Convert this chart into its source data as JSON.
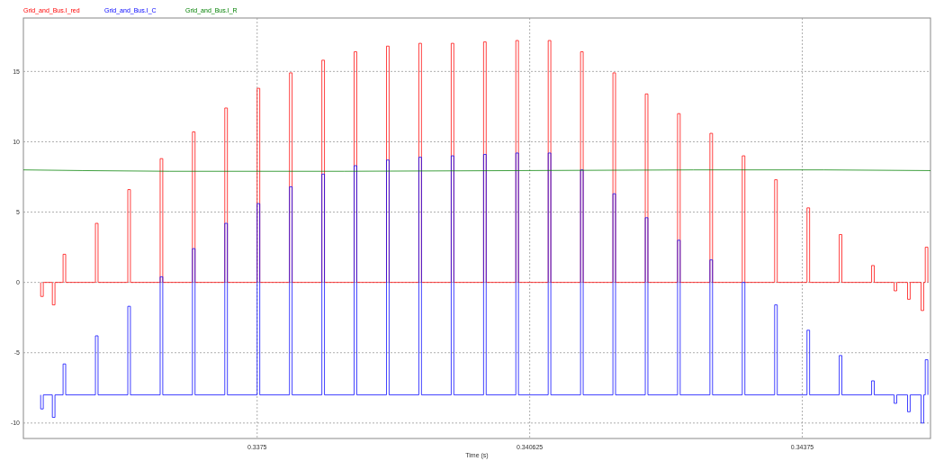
{
  "chart_data": {
    "type": "line",
    "xlabel": "Time (s)",
    "legend": "top left",
    "grid": true,
    "marker": "none",
    "line_style": "solid",
    "xlim": [
      0.33482,
      0.34522
    ],
    "xticks": [
      0.3375,
      0.340625,
      0.34375
    ],
    "ylim": [
      -11.1,
      18.8
    ],
    "yticks": [
      -10,
      -5,
      0,
      5,
      10,
      15
    ],
    "x": [
      0.335018,
      0.335018,
      0.335048,
      0.335048,
      0.335152,
      0.335152,
      0.335182,
      0.335182,
      0.335275,
      0.335275,
      0.335305,
      0.335305,
      0.335646,
      0.335646,
      0.335676,
      0.335676,
      0.336017,
      0.336017,
      0.336047,
      0.336047,
      0.336388,
      0.336388,
      0.336418,
      0.336418,
      0.336758,
      0.336758,
      0.336788,
      0.336788,
      0.337129,
      0.337129,
      0.337159,
      0.337159,
      0.3375,
      0.3375,
      0.33753,
      0.33753,
      0.337871,
      0.337871,
      0.337901,
      0.337901,
      0.338242,
      0.338242,
      0.338272,
      0.338272,
      0.338612,
      0.338612,
      0.338642,
      0.338642,
      0.338983,
      0.338983,
      0.339013,
      0.339013,
      0.339354,
      0.339354,
      0.339384,
      0.339384,
      0.339725,
      0.339725,
      0.339755,
      0.339755,
      0.340096,
      0.340096,
      0.340126,
      0.340126,
      0.340466,
      0.340466,
      0.340496,
      0.340496,
      0.340837,
      0.340837,
      0.340867,
      0.340867,
      0.341208,
      0.341208,
      0.341238,
      0.341238,
      0.341579,
      0.341579,
      0.341609,
      0.341609,
      0.34195,
      0.34195,
      0.34198,
      0.34198,
      0.34232,
      0.34232,
      0.34235,
      0.34235,
      0.342691,
      0.342691,
      0.342721,
      0.342721,
      0.343062,
      0.343062,
      0.343092,
      0.343092,
      0.343433,
      0.343433,
      0.343463,
      0.343463,
      0.343804,
      0.343804,
      0.343834,
      0.343834,
      0.344174,
      0.344174,
      0.344204,
      0.344204,
      0.344545,
      0.344545,
      0.344575,
      0.344575,
      0.344803,
      0.344803,
      0.344833,
      0.344833,
      0.344957,
      0.344957,
      0.344987,
      0.344987,
      0.345112,
      0.345112,
      0.345142,
      0.345142,
      0.34516,
      0.34516,
      0.34519,
      0.34519
    ],
    "series": [
      {
        "name": "Grid_and_Bus.I_red",
        "color": "#ff0000",
        "values": [
          0,
          -1.0,
          -1.0,
          0,
          0,
          -1.6,
          -1.6,
          0,
          0,
          2.0,
          2.0,
          0,
          0,
          4.2,
          4.2,
          0,
          0,
          6.6,
          6.6,
          0,
          0,
          8.8,
          8.8,
          0,
          0,
          10.7,
          10.7,
          0,
          0,
          12.4,
          12.4,
          0,
          0,
          13.8,
          13.8,
          0,
          0,
          14.9,
          14.9,
          0,
          0,
          15.8,
          15.8,
          0,
          0,
          16.4,
          16.4,
          0,
          0,
          16.8,
          16.8,
          0,
          0,
          17.0,
          17.0,
          0,
          0,
          17.0,
          17.0,
          0,
          0,
          17.1,
          17.1,
          0,
          0,
          17.2,
          17.2,
          0,
          0,
          17.2,
          17.2,
          0,
          0,
          16.4,
          16.4,
          0,
          0,
          14.9,
          14.9,
          0,
          0,
          13.4,
          13.4,
          0,
          0,
          12.0,
          12.0,
          0,
          0,
          10.6,
          10.6,
          0,
          0,
          9.0,
          9.0,
          0,
          0,
          7.3,
          7.3,
          0,
          0,
          5.3,
          5.3,
          0,
          0,
          3.4,
          3.4,
          0,
          0,
          1.2,
          1.2,
          0,
          0,
          -0.6,
          -0.6,
          0,
          0,
          -1.2,
          -1.2,
          0,
          0,
          -2.0,
          -2.0,
          0,
          0,
          2.5,
          2.5,
          0
        ]
      },
      {
        "name": "Grid_and_Bus.I_C",
        "color": "#0000ff",
        "values": [
          -8,
          -9.0,
          -9.0,
          -8,
          -8,
          -9.6,
          -9.6,
          -8,
          -8,
          -5.8,
          -5.8,
          -8,
          -8,
          -3.8,
          -3.8,
          -8,
          -8,
          -1.7,
          -1.7,
          -8,
          -8,
          0.4,
          0.4,
          -8,
          -8,
          2.4,
          2.4,
          -8,
          -8,
          4.2,
          4.2,
          -8,
          -8,
          5.6,
          5.6,
          -8,
          -8,
          6.8,
          6.8,
          -8,
          -8,
          7.7,
          7.7,
          -8,
          -8,
          8.3,
          8.3,
          -8,
          -8,
          8.7,
          8.7,
          -8,
          -8,
          8.9,
          8.9,
          -8,
          -8,
          9.0,
          9.0,
          -8,
          -8,
          9.1,
          9.1,
          -8,
          -8,
          9.2,
          9.2,
          -8,
          -8,
          9.2,
          9.2,
          -8,
          -8,
          8.0,
          8.0,
          -8,
          -8,
          6.3,
          6.3,
          -8,
          -8,
          4.6,
          4.6,
          -8,
          -8,
          3.0,
          3.0,
          -8,
          -8,
          1.6,
          1.6,
          -8,
          -8,
          0.0,
          0.0,
          -8,
          -8,
          -1.6,
          -1.6,
          -8,
          -8,
          -3.4,
          -3.4,
          -8,
          -8,
          -5.2,
          -5.2,
          -8,
          -8,
          -7.0,
          -7.0,
          -8,
          -8,
          -8.6,
          -8.6,
          -8,
          -8,
          -9.2,
          -9.2,
          -8,
          -8,
          -10.0,
          -10.0,
          -8,
          -8,
          -5.5,
          -5.5,
          -8
        ]
      },
      {
        "name": "Grid_and_Bus.I_R",
        "color": "#008000",
        "x": [
          0.33482,
          0.3355,
          0.3365,
          0.3385,
          0.3405,
          0.3425,
          0.344,
          0.34522
        ],
        "values": [
          8.0,
          7.95,
          7.9,
          7.9,
          7.95,
          8.0,
          8.0,
          7.95
        ]
      }
    ]
  }
}
